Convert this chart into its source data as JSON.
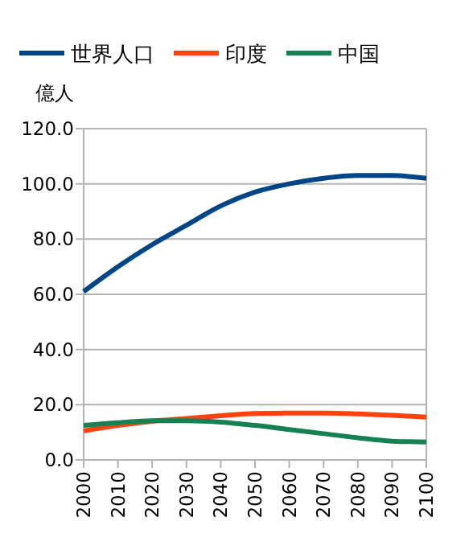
{
  "chart_data": {
    "type": "line",
    "ylabel": "億人",
    "categories": [
      "2000",
      "2010",
      "2020",
      "2030",
      "2040",
      "2050",
      "2060",
      "2070",
      "2080",
      "2090",
      "2100"
    ],
    "series": [
      {
        "name": "世界人口",
        "color": "#004586",
        "values": [
          61,
          70,
          78,
          85,
          92,
          97,
          100,
          102,
          103,
          103,
          102
        ]
      },
      {
        "name": "印度",
        "color": "#ff420e",
        "values": [
          10.5,
          12.5,
          14,
          15,
          16,
          16.8,
          17,
          17,
          16.7,
          16.2,
          15.5
        ]
      },
      {
        "name": "中国",
        "color": "#168253",
        "values": [
          12.5,
          13.5,
          14.2,
          14.2,
          13.7,
          12.5,
          11,
          9.5,
          8,
          6.8,
          6.5
        ]
      }
    ],
    "ylim": [
      0,
      120
    ],
    "yticks": [
      {
        "value": 0,
        "label": "0.0"
      },
      {
        "value": 20,
        "label": "20.0"
      },
      {
        "value": 40,
        "label": "40.0"
      },
      {
        "value": 60,
        "label": "60.0"
      },
      {
        "value": 80,
        "label": "80.0"
      },
      {
        "value": 100,
        "label": "100.0"
      },
      {
        "value": 120,
        "label": "120.0"
      }
    ],
    "grid": "y",
    "legend": "top",
    "marker": "none",
    "line_style": "solid"
  }
}
